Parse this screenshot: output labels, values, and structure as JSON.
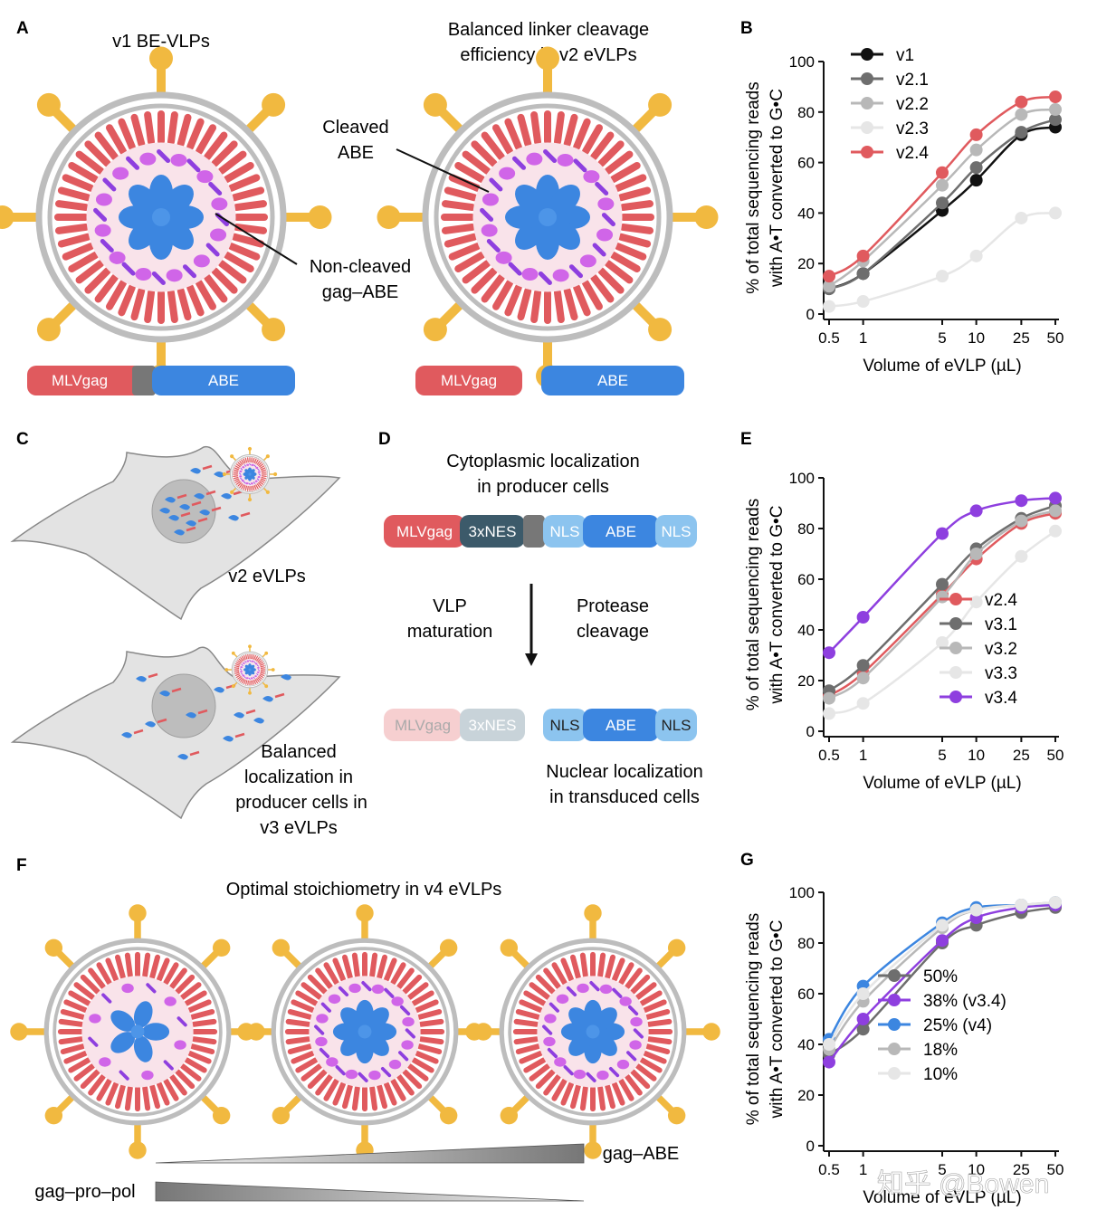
{
  "panels": {
    "A": {
      "letter": "A",
      "title_left": "v1 BE-VLPs",
      "title_right_line1": "Balanced linker cleavage",
      "title_right_line2": "efficiency in v2 eVLPs",
      "label_cleaved_1": "Cleaved",
      "label_cleaved_2": "ABE",
      "label_noncleaved_1": "Non-cleaved",
      "label_noncleaved_2": "gag–ABE",
      "bar_gag": "MLVgag",
      "bar_abe": "ABE"
    },
    "C": {
      "letter": "C",
      "label_v2": "v2 eVLPs",
      "label_v3_1": "Balanced",
      "label_v3_2": "localization in",
      "label_v3_3": "producer cells in",
      "label_v3_4": "v3 eVLPs"
    },
    "D": {
      "letter": "D",
      "title_1": "Cytoplasmic localization",
      "title_2": "in producer cells",
      "seg_gag": "MLVgag",
      "seg_nes": "3xNES",
      "seg_nls": "NLS",
      "seg_abe": "ABE",
      "vlp_1": "VLP",
      "vlp_2": "maturation",
      "protease_1": "Protease",
      "protease_2": "cleavage",
      "bottom_1": "Nuclear localization",
      "bottom_2": "in transduced cells"
    },
    "F": {
      "letter": "F",
      "title": "Optimal stoichiometry in v4 eVLPs",
      "gag_abe": "gag–ABE",
      "gag_pro_pol": "gag–pro–pol"
    }
  },
  "chart_data": [
    {
      "panel": "B",
      "type": "line",
      "xscale": "log",
      "x": [
        0.5,
        1,
        5,
        10,
        25,
        50
      ],
      "xticks": [
        "0.5",
        "1",
        "5",
        "10",
        "25",
        "50"
      ],
      "xlabel": "Volume of eVLP (µL)",
      "ylabel_1": "% of total sequencing reads",
      "ylabel_2": "with A•T converted to G•C",
      "ylim": [
        0,
        100
      ],
      "yticks": [
        "0",
        "20",
        "40",
        "60",
        "80",
        "100"
      ],
      "legend_position": "top-left",
      "series": [
        {
          "name": "v1",
          "color": "#111111",
          "values": [
            10,
            16,
            41,
            53,
            71,
            74
          ]
        },
        {
          "name": "v2.1",
          "color": "#6e6e6e",
          "values": [
            10,
            16,
            44,
            58,
            72,
            77
          ]
        },
        {
          "name": "v2.2",
          "color": "#b8b8b8",
          "values": [
            11,
            21,
            51,
            65,
            79,
            81
          ]
        },
        {
          "name": "v2.3",
          "color": "#e6e6e6",
          "values": [
            3,
            5,
            15,
            23,
            38,
            40
          ]
        },
        {
          "name": "v2.4",
          "color": "#e05a5e",
          "values": [
            15,
            23,
            56,
            71,
            84,
            86
          ]
        }
      ]
    },
    {
      "panel": "E",
      "type": "line",
      "xscale": "log",
      "x": [
        0.5,
        1,
        5,
        10,
        25,
        50
      ],
      "xticks": [
        "0.5",
        "1",
        "5",
        "10",
        "25",
        "50"
      ],
      "xlabel": "Volume of eVLP (µL)",
      "ylabel_1": "% of total sequencing reads",
      "ylabel_2": "with A•T converted to G•C",
      "ylim": [
        0,
        100
      ],
      "yticks": [
        "0",
        "20",
        "40",
        "60",
        "80",
        "100"
      ],
      "legend_position": "bottom-right",
      "series": [
        {
          "name": "v2.4",
          "color": "#e05a5e",
          "values": [
            14,
            23,
            54,
            68,
            82,
            86
          ]
        },
        {
          "name": "v3.1",
          "color": "#6e6e6e",
          "values": [
            16,
            26,
            58,
            72,
            84,
            89
          ]
        },
        {
          "name": "v3.2",
          "color": "#b8b8b8",
          "values": [
            13,
            21,
            53,
            70,
            83,
            87
          ]
        },
        {
          "name": "v3.3",
          "color": "#e6e6e6",
          "values": [
            7,
            11,
            35,
            51,
            69,
            79
          ]
        },
        {
          "name": "v3.4",
          "color": "#8e3fdf",
          "values": [
            31,
            45,
            78,
            87,
            91,
            92
          ]
        }
      ]
    },
    {
      "panel": "G",
      "type": "line",
      "xscale": "log",
      "x": [
        0.5,
        1,
        5,
        10,
        25,
        50
      ],
      "xticks": [
        "0.5",
        "1",
        "5",
        "10",
        "25",
        "50"
      ],
      "xlabel": "Volume of eVLP (µL)",
      "ylabel_1": "% of total sequencing reads",
      "ylabel_2": "with A•T converted to G•C",
      "ylim": [
        0,
        100
      ],
      "yticks": [
        "0",
        "20",
        "40",
        "60",
        "80",
        "100"
      ],
      "legend_position": "center-right",
      "series": [
        {
          "name": "50%",
          "color": "#6e6e6e",
          "values": [
            36,
            46,
            80,
            87,
            92,
            94
          ]
        },
        {
          "name": "38% (v3.4)",
          "color": "#8e3fdf",
          "values": [
            33,
            50,
            81,
            90,
            94,
            95
          ]
        },
        {
          "name": "25% (v4)",
          "color": "#3c86e0",
          "values": [
            42,
            63,
            88,
            94,
            95,
            96
          ]
        },
        {
          "name": "18%",
          "color": "#b8b8b8",
          "values": [
            38,
            57,
            86,
            93,
            95,
            96
          ]
        },
        {
          "name": "10%",
          "color": "#e6e6e6",
          "values": [
            40,
            60,
            87,
            93,
            95,
            96
          ]
        }
      ]
    }
  ],
  "watermark": "知乎 @Bowen"
}
